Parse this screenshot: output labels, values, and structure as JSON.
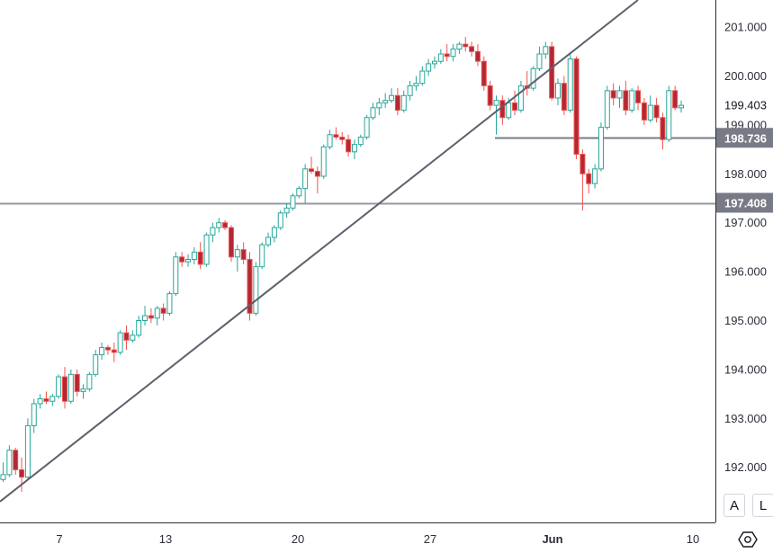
{
  "chart_data": {
    "type": "candlestick",
    "y_axis": {
      "ticks": [
        "201.000",
        "200.000",
        "199.000",
        "198.000",
        "197.000",
        "196.000",
        "195.000",
        "194.000",
        "193.000",
        "192.000"
      ],
      "range": [
        191.0,
        201.5
      ]
    },
    "x_axis": {
      "tick_labels": [
        {
          "label": "7",
          "bold": false
        },
        {
          "label": "13",
          "bold": false
        },
        {
          "label": "20",
          "bold": false
        },
        {
          "label": "27",
          "bold": false
        },
        {
          "label": "Jun",
          "bold": true
        },
        {
          "label": "10",
          "bold": false
        }
      ]
    },
    "price_tags": [
      {
        "id": "last",
        "label": "199.403",
        "value": 199.403,
        "style": "plain"
      },
      {
        "id": "level1",
        "label": "198.736",
        "value": 198.736,
        "style": "filled",
        "color": "#787b86"
      },
      {
        "id": "level2",
        "label": "197.408",
        "value": 197.408,
        "style": "filled",
        "color": "#787b86"
      }
    ],
    "horizontal_lines": [
      {
        "value": 198.736,
        "color": "#787b86",
        "extent": "partial"
      },
      {
        "value": 197.408,
        "color": "#9598a1",
        "extent": "full"
      }
    ],
    "trend_line": {
      "color": "#5d606b",
      "points": [
        [
          0,
          191.3
        ],
        [
          45,
          201.6
        ]
      ]
    },
    "colors": {
      "up": "#26a69a",
      "down": "#ef5350",
      "up_fill": "#ffffff",
      "down_fill": "#b22833"
    },
    "candles": [
      [
        0,
        191.75,
        192.1,
        191.7,
        191.85
      ],
      [
        1,
        191.85,
        192.45,
        191.8,
        192.35
      ],
      [
        2,
        192.35,
        192.4,
        191.85,
        191.95
      ],
      [
        3,
        191.95,
        192.2,
        191.5,
        191.8
      ],
      [
        4,
        191.8,
        193.0,
        191.75,
        192.85
      ],
      [
        5,
        192.85,
        193.4,
        192.7,
        193.3
      ],
      [
        6,
        193.3,
        193.5,
        193.2,
        193.4
      ],
      [
        7,
        193.4,
        193.55,
        193.3,
        193.35
      ],
      [
        8,
        193.35,
        193.5,
        193.25,
        193.45
      ],
      [
        9,
        193.45,
        193.9,
        193.4,
        193.85
      ],
      [
        10,
        193.85,
        194.05,
        193.2,
        193.35
      ],
      [
        11,
        193.35,
        194.0,
        193.3,
        193.9
      ],
      [
        12,
        193.9,
        194.0,
        193.45,
        193.55
      ],
      [
        13,
        193.55,
        193.7,
        193.4,
        193.6
      ],
      [
        14,
        193.6,
        193.95,
        193.55,
        193.9
      ],
      [
        15,
        193.9,
        194.4,
        193.85,
        194.3
      ],
      [
        16,
        194.3,
        194.55,
        194.2,
        194.45
      ],
      [
        17,
        194.45,
        194.5,
        194.3,
        194.4
      ],
      [
        18,
        194.4,
        194.55,
        194.15,
        194.35
      ],
      [
        19,
        194.35,
        194.8,
        194.3,
        194.75
      ],
      [
        20,
        194.75,
        194.9,
        194.4,
        194.6
      ],
      [
        21,
        194.6,
        194.8,
        194.55,
        194.7
      ],
      [
        22,
        194.7,
        195.1,
        194.65,
        195.0
      ],
      [
        23,
        195.0,
        195.3,
        194.9,
        195.1
      ],
      [
        24,
        195.1,
        195.25,
        194.95,
        195.05
      ],
      [
        25,
        195.05,
        195.3,
        194.9,
        195.25
      ],
      [
        26,
        195.25,
        195.35,
        195.0,
        195.15
      ],
      [
        27,
        195.15,
        195.6,
        195.1,
        195.55
      ],
      [
        28,
        195.55,
        196.4,
        195.5,
        196.3
      ],
      [
        29,
        196.3,
        196.4,
        196.1,
        196.2
      ],
      [
        30,
        196.2,
        196.35,
        196.1,
        196.25
      ],
      [
        31,
        196.25,
        196.5,
        196.15,
        196.4
      ],
      [
        32,
        196.4,
        196.6,
        196.05,
        196.15
      ],
      [
        33,
        196.15,
        196.8,
        196.1,
        196.75
      ],
      [
        34,
        196.75,
        197.0,
        196.6,
        196.9
      ],
      [
        35,
        196.9,
        197.1,
        196.8,
        197.0
      ],
      [
        36,
        197.0,
        197.05,
        196.85,
        196.9
      ],
      [
        37,
        196.9,
        196.95,
        196.2,
        196.3
      ],
      [
        38,
        196.3,
        196.55,
        196.0,
        196.45
      ],
      [
        39,
        196.45,
        196.6,
        196.15,
        196.25
      ],
      [
        40,
        196.25,
        196.4,
        195.0,
        195.15
      ],
      [
        41,
        195.15,
        196.2,
        195.1,
        196.1
      ],
      [
        42,
        196.1,
        196.6,
        196.05,
        196.55
      ],
      [
        43,
        196.55,
        196.8,
        196.5,
        196.7
      ],
      [
        44,
        196.7,
        196.95,
        196.6,
        196.9
      ],
      [
        45,
        196.9,
        197.25,
        196.85,
        197.2
      ],
      [
        46,
        197.2,
        197.4,
        197.1,
        197.3
      ],
      [
        47,
        197.3,
        197.6,
        197.25,
        197.55
      ],
      [
        48,
        197.55,
        197.75,
        197.5,
        197.7
      ],
      [
        49,
        197.7,
        198.2,
        197.4,
        198.1
      ],
      [
        50,
        198.1,
        198.35,
        198.0,
        198.05
      ],
      [
        51,
        198.05,
        198.15,
        197.6,
        197.95
      ],
      [
        52,
        197.95,
        198.6,
        197.9,
        198.55
      ],
      [
        53,
        198.55,
        198.9,
        198.5,
        198.8
      ],
      [
        54,
        198.8,
        198.95,
        198.7,
        198.75
      ],
      [
        55,
        198.75,
        198.85,
        198.6,
        198.7
      ],
      [
        56,
        198.7,
        198.8,
        198.35,
        198.45
      ],
      [
        57,
        198.45,
        198.7,
        198.3,
        198.6
      ],
      [
        58,
        198.6,
        198.8,
        198.55,
        198.75
      ],
      [
        59,
        198.75,
        199.2,
        198.7,
        199.15
      ],
      [
        60,
        199.15,
        199.45,
        199.1,
        199.35
      ],
      [
        61,
        199.35,
        199.55,
        199.2,
        199.45
      ],
      [
        62,
        199.45,
        199.65,
        199.35,
        199.5
      ],
      [
        63,
        199.5,
        199.75,
        199.45,
        199.6
      ],
      [
        64,
        199.6,
        199.75,
        199.2,
        199.3
      ],
      [
        65,
        199.3,
        199.7,
        199.25,
        199.6
      ],
      [
        66,
        199.6,
        199.9,
        199.5,
        199.8
      ],
      [
        67,
        199.8,
        200.0,
        199.7,
        199.85
      ],
      [
        68,
        199.85,
        200.2,
        199.8,
        200.1
      ],
      [
        69,
        200.1,
        200.35,
        200.0,
        200.25
      ],
      [
        70,
        200.25,
        200.4,
        200.15,
        200.3
      ],
      [
        71,
        200.3,
        200.55,
        200.25,
        200.45
      ],
      [
        72,
        200.45,
        200.65,
        200.3,
        200.4
      ],
      [
        73,
        200.4,
        200.65,
        200.3,
        200.55
      ],
      [
        74,
        200.55,
        200.7,
        200.45,
        200.65
      ],
      [
        75,
        200.65,
        200.8,
        200.5,
        200.6
      ],
      [
        76,
        200.6,
        200.7,
        200.4,
        200.5
      ],
      [
        77,
        200.5,
        200.65,
        200.2,
        200.3
      ],
      [
        78,
        200.3,
        200.4,
        199.7,
        199.8
      ],
      [
        79,
        199.8,
        199.9,
        199.3,
        199.4
      ],
      [
        80,
        199.4,
        199.6,
        198.8,
        199.5
      ],
      [
        81,
        199.5,
        199.6,
        199.0,
        199.15
      ],
      [
        82,
        199.15,
        199.55,
        199.1,
        199.45
      ],
      [
        83,
        199.45,
        199.7,
        199.2,
        199.3
      ],
      [
        84,
        199.3,
        199.9,
        199.25,
        199.8
      ],
      [
        85,
        199.8,
        200.1,
        199.6,
        199.75
      ],
      [
        86,
        199.75,
        200.2,
        199.7,
        200.15
      ],
      [
        87,
        200.15,
        200.6,
        200.1,
        200.45
      ],
      [
        88,
        200.45,
        200.7,
        200.35,
        200.6
      ],
      [
        89,
        200.6,
        200.7,
        199.5,
        199.55
      ],
      [
        90,
        199.55,
        199.95,
        199.4,
        199.85
      ],
      [
        91,
        199.85,
        200.0,
        199.2,
        199.3
      ],
      [
        92,
        199.3,
        200.45,
        199.25,
        200.35
      ],
      [
        93,
        200.35,
        200.4,
        198.3,
        198.4
      ],
      [
        94,
        198.4,
        198.5,
        197.25,
        198.0
      ],
      [
        95,
        198.0,
        198.1,
        197.6,
        197.8
      ],
      [
        96,
        197.8,
        198.2,
        197.7,
        198.1
      ],
      [
        97,
        198.1,
        199.05,
        198.05,
        198.95
      ],
      [
        98,
        198.95,
        199.8,
        198.9,
        199.7
      ],
      [
        99,
        199.7,
        199.85,
        199.4,
        199.55
      ],
      [
        100,
        199.55,
        199.8,
        199.35,
        199.7
      ],
      [
        101,
        199.7,
        199.9,
        199.2,
        199.3
      ],
      [
        102,
        199.3,
        199.75,
        199.25,
        199.7
      ],
      [
        103,
        199.7,
        199.8,
        199.3,
        199.45
      ],
      [
        104,
        199.45,
        199.55,
        199.0,
        199.1
      ],
      [
        105,
        199.1,
        199.6,
        199.05,
        199.4
      ],
      [
        106,
        199.4,
        199.55,
        199.05,
        199.15
      ],
      [
        107,
        199.15,
        199.25,
        198.5,
        198.7
      ],
      [
        108,
        198.7,
        199.8,
        198.65,
        199.7
      ],
      [
        109,
        199.7,
        199.8,
        199.3,
        199.35
      ],
      [
        110,
        199.35,
        199.5,
        199.25,
        199.4
      ]
    ]
  },
  "controls": {
    "auto_label": "A",
    "log_label": "L",
    "settings_icon": "hexagon-settings-icon"
  }
}
